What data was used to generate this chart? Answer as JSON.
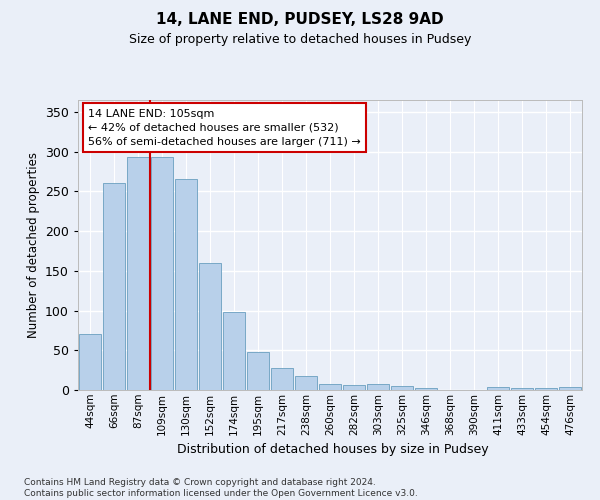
{
  "title1": "14, LANE END, PUDSEY, LS28 9AD",
  "title2": "Size of property relative to detached houses in Pudsey",
  "xlabel": "Distribution of detached houses by size in Pudsey",
  "ylabel": "Number of detached properties",
  "categories": [
    "44sqm",
    "66sqm",
    "87sqm",
    "109sqm",
    "130sqm",
    "152sqm",
    "174sqm",
    "195sqm",
    "217sqm",
    "238sqm",
    "260sqm",
    "282sqm",
    "303sqm",
    "325sqm",
    "346sqm",
    "368sqm",
    "390sqm",
    "411sqm",
    "433sqm",
    "454sqm",
    "476sqm"
  ],
  "values": [
    70,
    260,
    293,
    293,
    265,
    160,
    98,
    48,
    28,
    17,
    8,
    6,
    8,
    5,
    3,
    0,
    0,
    4,
    3,
    3,
    4
  ],
  "bar_color": "#b8d0ea",
  "bar_edgecolor": "#6a9fc0",
  "vline_x": 2.5,
  "vline_color": "#cc0000",
  "annotation_text": "14 LANE END: 105sqm\n← 42% of detached houses are smaller (532)\n56% of semi-detached houses are larger (711) →",
  "ylim": [
    0,
    365
  ],
  "yticks": [
    0,
    50,
    100,
    150,
    200,
    250,
    300,
    350
  ],
  "background_color": "#eaeff8",
  "grid_color": "#ffffff",
  "footer": "Contains HM Land Registry data © Crown copyright and database right 2024.\nContains public sector information licensed under the Open Government Licence v3.0."
}
